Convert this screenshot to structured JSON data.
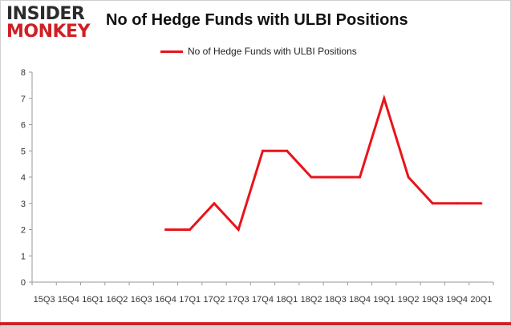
{
  "brand": {
    "logo_line1": "INSIDER",
    "logo_line2": "MONKEY"
  },
  "chart_data": {
    "type": "line",
    "title": "No of Hedge Funds with ULBI Positions",
    "xlabel": "",
    "ylabel": "",
    "ylim": [
      0,
      8
    ],
    "yticks": [
      0,
      1,
      2,
      3,
      4,
      5,
      6,
      7,
      8
    ],
    "grid": false,
    "legend_position": "top",
    "categories": [
      "15Q3",
      "15Q4",
      "16Q1",
      "16Q2",
      "16Q3",
      "16Q4",
      "17Q1",
      "17Q2",
      "17Q3",
      "17Q4",
      "18Q1",
      "18Q2",
      "18Q3",
      "18Q4",
      "19Q1",
      "19Q2",
      "19Q3",
      "19Q4",
      "20Q1"
    ],
    "series": [
      {
        "name": "No of Hedge Funds with ULBI Positions",
        "color": "#e8141a",
        "values": [
          null,
          null,
          null,
          null,
          null,
          2,
          2,
          3,
          2,
          5,
          5,
          4,
          4,
          4,
          7,
          4,
          3,
          3,
          3
        ]
      }
    ]
  }
}
